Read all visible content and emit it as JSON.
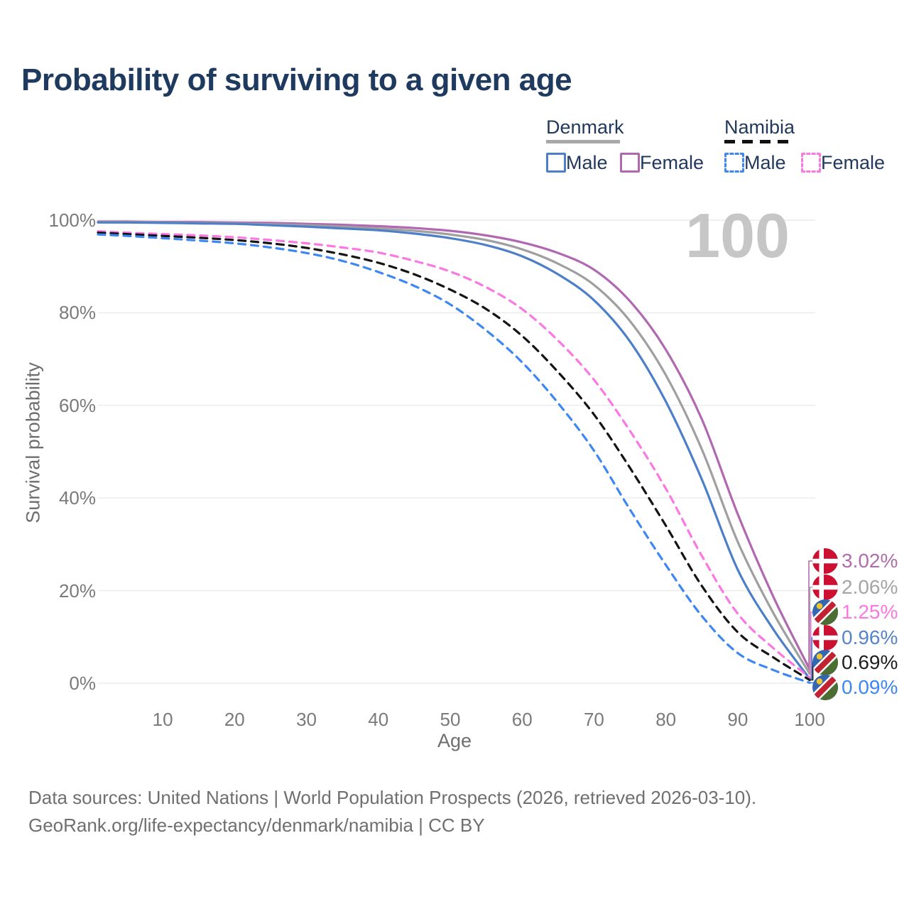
{
  "title": "Probability of surviving to a given age",
  "watermark_age": "100",
  "legend": {
    "denmark": {
      "label": "Denmark",
      "male": "Male",
      "female": "Female",
      "line_color": "#a8a8a8",
      "male_color": "#4d7fc9",
      "female_color": "#b168b1"
    },
    "namibia": {
      "label": "Namibia",
      "male": "Male",
      "female": "Female",
      "line_color": "#141414",
      "male_color": "#3e87f2",
      "female_color": "#fa78e2"
    }
  },
  "chart_data": {
    "type": "line",
    "title": "Probability of surviving to a given age",
    "xlabel": "Age",
    "ylabel": "Survival probability",
    "x_ticks": [
      10,
      20,
      30,
      40,
      50,
      60,
      70,
      80,
      90,
      100
    ],
    "y_ticks": [
      {
        "value": 0,
        "label": "0%"
      },
      {
        "value": 20,
        "label": "20%"
      },
      {
        "value": 40,
        "label": "40%"
      },
      {
        "value": 60,
        "label": "60%"
      },
      {
        "value": 80,
        "label": "80%"
      },
      {
        "value": 100,
        "label": "100%"
      }
    ],
    "xlim": [
      1,
      100
    ],
    "ylim": [
      0,
      100
    ],
    "grid": "horizontal",
    "legend_position": "top-right",
    "x": [
      1,
      5,
      10,
      15,
      20,
      25,
      30,
      35,
      40,
      45,
      50,
      55,
      60,
      65,
      70,
      75,
      80,
      85,
      90,
      95,
      100
    ],
    "series": [
      {
        "name": "Denmark Female",
        "style": "solid",
        "color": "#b168b1",
        "values": [
          99.7,
          99.7,
          99.6,
          99.6,
          99.5,
          99.4,
          99.2,
          99.0,
          98.7,
          98.3,
          97.7,
          96.7,
          95.2,
          92.9,
          89.3,
          82.5,
          72.0,
          57.0,
          36.5,
          18.5,
          3.02
        ]
      },
      {
        "name": "Denmark Both sexes",
        "style": "solid",
        "color": "#9f9f9f",
        "values": [
          99.6,
          99.6,
          99.5,
          99.4,
          99.3,
          99.1,
          98.9,
          98.6,
          98.2,
          97.7,
          96.9,
          95.7,
          93.7,
          90.6,
          86.0,
          78.2,
          66.5,
          50.5,
          30.5,
          15.0,
          2.06
        ]
      },
      {
        "name": "Denmark Male",
        "style": "solid",
        "color": "#4d7fc9",
        "values": [
          99.5,
          99.5,
          99.4,
          99.3,
          99.2,
          98.9,
          98.6,
          98.2,
          97.8,
          97.1,
          96.1,
          94.6,
          92.2,
          88.3,
          82.7,
          73.8,
          60.8,
          44.0,
          24.5,
          11.5,
          0.96
        ]
      },
      {
        "name": "Namibia Female",
        "style": "dashed",
        "color": "#fa78e2",
        "values": [
          97.6,
          97.3,
          97.0,
          96.7,
          96.3,
          95.7,
          95.0,
          94.1,
          93.0,
          91.2,
          88.9,
          85.5,
          80.8,
          74.0,
          65.5,
          54.5,
          42.0,
          27.5,
          15.0,
          7.5,
          1.25
        ]
      },
      {
        "name": "Namibia Both sexes",
        "style": "dashed",
        "color": "#141414",
        "values": [
          97.3,
          97.0,
          96.6,
          96.2,
          95.7,
          95.0,
          94.0,
          92.6,
          90.8,
          88.3,
          85.0,
          80.8,
          75.0,
          67.2,
          58.0,
          46.5,
          34.0,
          21.0,
          11.0,
          5.5,
          0.69
        ]
      },
      {
        "name": "Namibia Male",
        "style": "dashed",
        "color": "#3e87f2",
        "values": [
          96.9,
          96.6,
          96.1,
          95.6,
          95.0,
          94.1,
          92.9,
          91.2,
          88.8,
          85.8,
          81.8,
          76.2,
          69.3,
          60.5,
          50.2,
          37.5,
          25.5,
          14.5,
          6.5,
          2.8,
          0.09
        ]
      }
    ]
  },
  "end_labels": [
    {
      "value": "3.02%",
      "end_value": 3.02,
      "country": "denmark",
      "series_name": "Denmark Female",
      "color": "#b06dac"
    },
    {
      "value": "2.06%",
      "end_value": 2.06,
      "country": "denmark",
      "series_name": "Denmark Both sexes",
      "color": "#a5a5a5"
    },
    {
      "value": "1.25%",
      "end_value": 1.25,
      "country": "namibia",
      "series_name": "Namibia Female",
      "color": "#fa78e2"
    },
    {
      "value": "0.96%",
      "end_value": 0.96,
      "country": "denmark",
      "series_name": "Denmark Male",
      "color": "#5584c8"
    },
    {
      "value": "0.69%",
      "end_value": 0.69,
      "country": "namibia",
      "series_name": "Namibia Both sexes",
      "color": "#1f1f1f"
    },
    {
      "value": "0.09%",
      "end_value": 0.09,
      "country": "namibia",
      "series_name": "Namibia Male",
      "color": "#3d87f5"
    }
  ],
  "footer": {
    "line1": "Data sources: United Nations | World Population Prospects (2026, retrieved 2026-03-10).",
    "line2": "GeoRank.org/life-expectancy/denmark/namibia | CC BY"
  },
  "colors": {
    "title": "#1f3a5f",
    "gridline": "#ececec",
    "tick_text": "#7a7a7a",
    "axis_label_text": "#6e6e6e",
    "watermark": "#c6c6c6",
    "footer_text": "#6f6f6f"
  }
}
